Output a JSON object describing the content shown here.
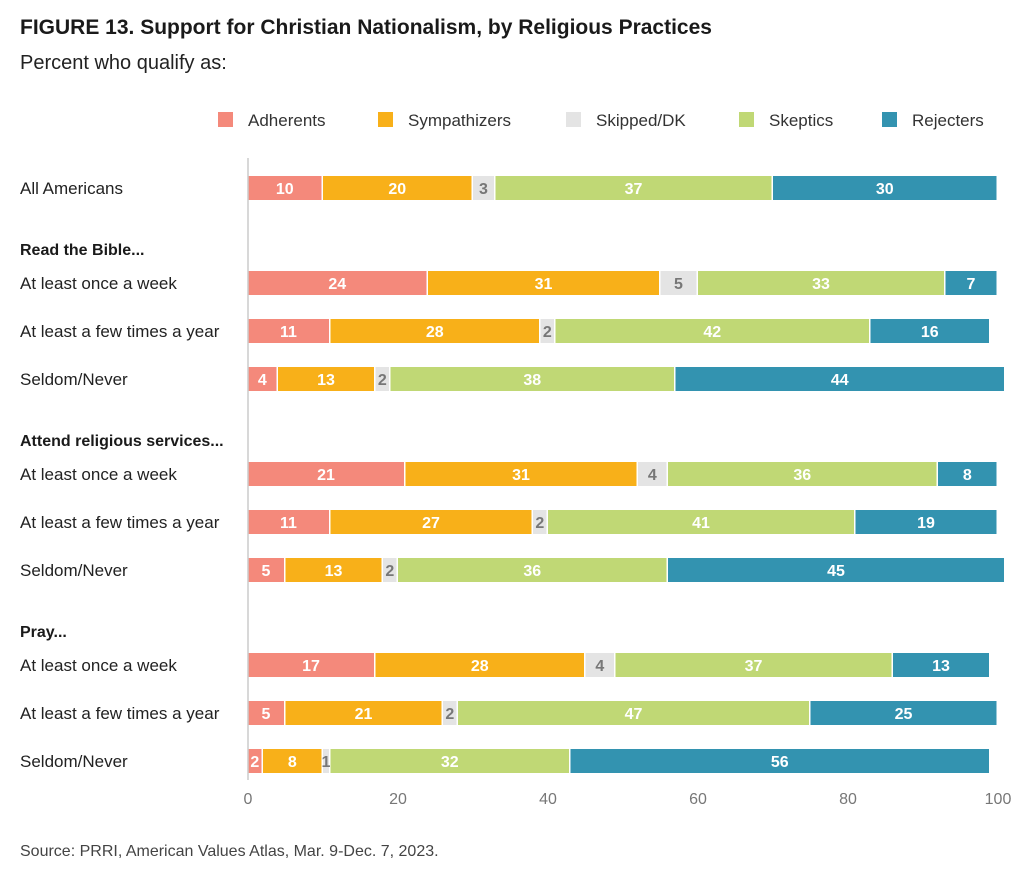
{
  "title": "FIGURE 13.  Support for Christian Nationalism, by Religious Practices",
  "subtitle": "Percent who qualify as:",
  "source": "Source: PRRI, American Values Atlas, Mar. 9-Dec. 7, 2023.",
  "chart_data": {
    "type": "bar",
    "orientation": "horizontal",
    "stacked": true,
    "legend_position": "top-right",
    "grid": false,
    "xlim": [
      0,
      100
    ],
    "x_ticks": [
      0,
      20,
      40,
      60,
      80,
      100
    ],
    "series": [
      {
        "name": "Adherents",
        "color": "#f4897b"
      },
      {
        "name": "Sympathizers",
        "color": "#f8b019"
      },
      {
        "name": "Skipped/DK",
        "color": "#e4e4e4"
      },
      {
        "name": "Skeptics",
        "color": "#c0d875"
      },
      {
        "name": "Rejecters",
        "color": "#3393b0"
      }
    ],
    "groups": [
      {
        "heading": "",
        "rows": [
          {
            "label": "All Americans",
            "values": [
              10,
              20,
              3,
              37,
              30
            ]
          }
        ]
      },
      {
        "heading": "Read the Bible...",
        "rows": [
          {
            "label": "At least once a week",
            "values": [
              24,
              31,
              5,
              33,
              7
            ]
          },
          {
            "label": "At least a few times a year",
            "values": [
              11,
              28,
              2,
              42,
              16
            ]
          },
          {
            "label": "Seldom/Never",
            "values": [
              4,
              13,
              2,
              38,
              44
            ]
          }
        ]
      },
      {
        "heading": "Attend religious services...",
        "rows": [
          {
            "label": "At least once a week",
            "values": [
              21,
              31,
              4,
              36,
              8
            ]
          },
          {
            "label": "At least a few times a year",
            "values": [
              11,
              27,
              2,
              41,
              19
            ]
          },
          {
            "label": "Seldom/Never",
            "values": [
              5,
              13,
              2,
              36,
              45
            ]
          }
        ]
      },
      {
        "heading": "Pray...",
        "rows": [
          {
            "label": "At least once a week",
            "values": [
              17,
              28,
              4,
              37,
              13
            ]
          },
          {
            "label": "At least a few times a year",
            "values": [
              5,
              21,
              2,
              47,
              25
            ]
          },
          {
            "label": "Seldom/Never",
            "values": [
              2,
              8,
              1,
              32,
              56
            ]
          }
        ]
      }
    ]
  }
}
